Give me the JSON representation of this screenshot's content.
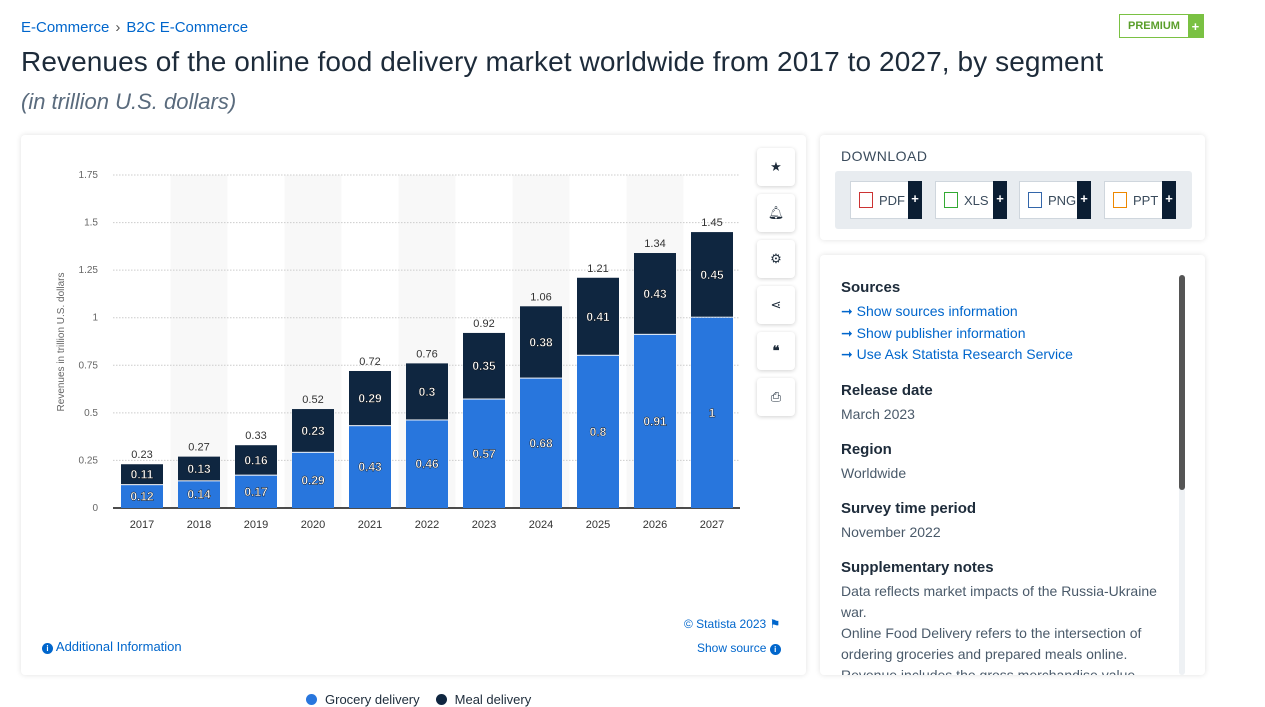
{
  "breadcrumb": [
    "E-Commerce",
    "B2C E-Commerce"
  ],
  "premium": {
    "label": "PREMIUM",
    "plus": "+"
  },
  "title": "Revenues of the online food delivery market worldwide from 2017 to 2027, by segment",
  "subtitle": "(in trillion U.S. dollars)",
  "toolbar": {
    "icons": [
      "star-icon",
      "bell-icon",
      "gear-icon",
      "share-icon",
      "quote-icon",
      "print-icon"
    ]
  },
  "footer": {
    "additional_info": "Additional Information",
    "copyright": "© Statista 2023",
    "show_source": "Show source"
  },
  "download": {
    "title": "DOWNLOAD",
    "formats": [
      "PDF",
      "XLS",
      "PNG",
      "PPT"
    ]
  },
  "info": {
    "sources_title": "Sources",
    "source_links": [
      "Show sources information",
      "Show publisher information",
      "Use Ask Statista Research Service"
    ],
    "release_title": "Release date",
    "release": "March 2023",
    "region_title": "Region",
    "region": "Worldwide",
    "period_title": "Survey time period",
    "period": "November 2022",
    "notes_title": "Supplementary notes",
    "notes": [
      "Data reflects market impacts of the Russia-Ukraine war.",
      "Online Food Delivery refers to the intersection of ordering groceries and prepared meals online.",
      "Revenue includes the gross merchandise value"
    ]
  },
  "chart_data": {
    "type": "bar",
    "stacked": true,
    "categories": [
      "2017",
      "2018",
      "2019",
      "2020",
      "2021",
      "2022",
      "2023",
      "2024",
      "2025",
      "2026",
      "2027"
    ],
    "series": [
      {
        "name": "Grocery delivery",
        "color": "#2876dd",
        "values": [
          0.12,
          0.14,
          0.17,
          0.29,
          0.43,
          0.46,
          0.57,
          0.68,
          0.8,
          0.91,
          1
        ]
      },
      {
        "name": "Meal delivery",
        "color": "#0f2640",
        "values": [
          0.11,
          0.13,
          0.16,
          0.23,
          0.29,
          0.3,
          0.35,
          0.38,
          0.41,
          0.43,
          0.45
        ]
      }
    ],
    "totals": [
      "0.23",
      "0.27",
      "0.33",
      "0.52",
      "0.72",
      "0.76",
      "0.92",
      "1.06",
      "1.21",
      "1.34",
      "1.45"
    ],
    "ylabel": "Revenues in trillion U.S. dollars",
    "yticks": [
      "0",
      "0.25",
      "0.5",
      "0.75",
      "1",
      "1.25",
      "1.5",
      "1.75"
    ],
    "ylim": [
      0,
      1.75
    ],
    "grid": true,
    "legend": "bottom"
  }
}
